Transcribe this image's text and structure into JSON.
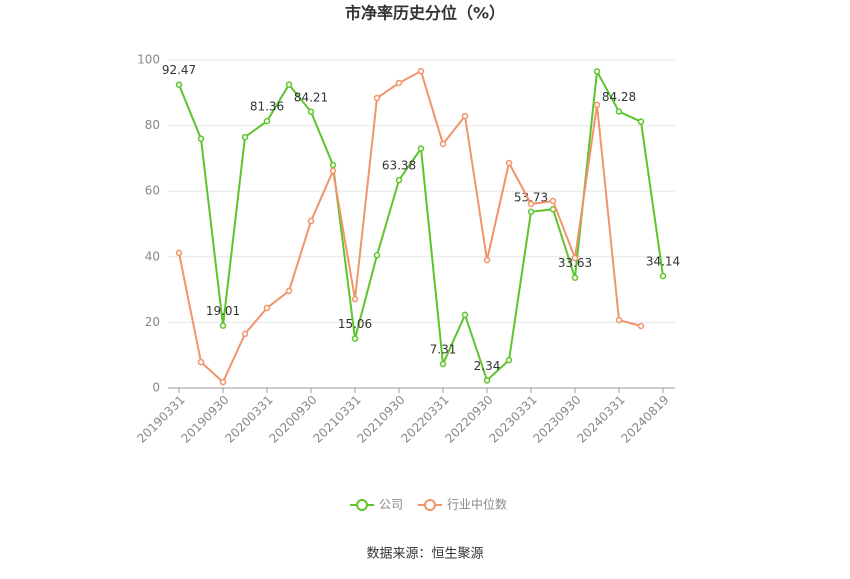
{
  "chart_data": {
    "type": "line",
    "title": "市净率历史分位（%）",
    "source": "数据来源：恒生聚源",
    "categories": [
      "20190331",
      null,
      "20190930",
      null,
      "20200331",
      null,
      "20200930",
      null,
      "20210331",
      null,
      "20210930",
      null,
      "20220331",
      null,
      "20220930",
      null,
      "20230331",
      null,
      "20230930",
      null,
      "20240331",
      null,
      "20240819"
    ],
    "series": [
      {
        "name": "公司",
        "color": "#5ec42c",
        "values": [
          92.47,
          76,
          19.01,
          76.5,
          81.36,
          92.5,
          84.21,
          68,
          15.06,
          40.5,
          63.38,
          73,
          7.31,
          22.3,
          2.34,
          8.5,
          53.73,
          54.5,
          33.63,
          96.5,
          84.28,
          81.2,
          34.14
        ]
      },
      {
        "name": "行业中位数",
        "color": "#f0946a",
        "values": [
          41.2,
          7.9,
          1.8,
          16.5,
          24.4,
          29.6,
          50.9,
          66.2,
          27.1,
          88.4,
          93,
          96.6,
          74.4,
          82.9,
          39,
          68.6,
          56.1,
          57,
          39.6,
          86.3,
          20.7,
          18.9,
          null
        ]
      }
    ],
    "ylim": [
      0,
      100
    ],
    "yticks": [
      0,
      20,
      40,
      60,
      80,
      100
    ],
    "grid": true
  }
}
